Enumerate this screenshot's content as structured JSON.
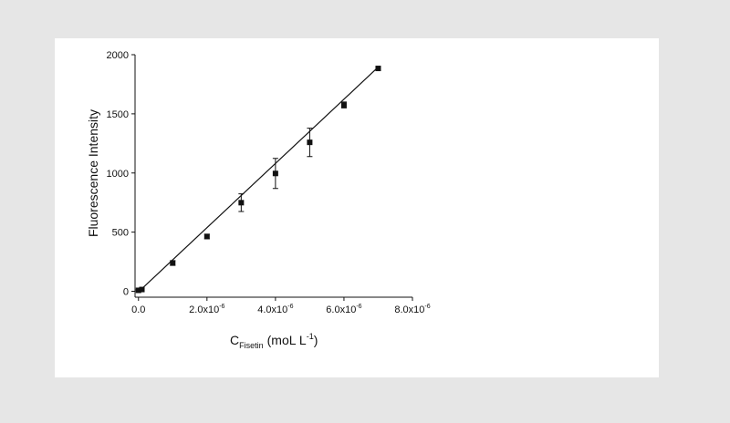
{
  "chart_data": {
    "type": "scatter",
    "x_label": {
      "main": "C",
      "sub": "Fisetin",
      "text": "(moL L",
      "sup": "-1",
      "end": ")"
    },
    "y_label": "Fluorescence Intensity",
    "x": [
      0,
      1e-07,
      1e-06,
      2e-06,
      3e-06,
      4e-06,
      5e-06,
      6e-06,
      7e-06
    ],
    "values": [
      8,
      15,
      239,
      463,
      749,
      996,
      1259,
      1575,
      1884
    ],
    "errors": [
      5,
      5,
      20,
      20,
      75,
      127,
      120,
      25,
      15
    ],
    "color": "#111111",
    "fit_line": {
      "x": [
        0,
        7e-06
      ],
      "values": [
        -5,
        1895
      ]
    },
    "xlim": [
      -1e-07,
      8e-06
    ],
    "ylim": [
      -50,
      2000
    ],
    "xticks": [
      {
        "value": 0,
        "label": "0.0"
      },
      {
        "value": 2e-06,
        "label": "2.0x10",
        "label_exp": "-6"
      },
      {
        "value": 4e-06,
        "label": "4.0x10",
        "label_exp": "-6"
      },
      {
        "value": 6e-06,
        "label": "6.0x10",
        "label_exp": "-6"
      },
      {
        "value": 8e-06,
        "label": "8.0x10",
        "label_exp": "-6"
      }
    ],
    "yticks": [
      0,
      500,
      1000,
      1500,
      2000
    ]
  }
}
